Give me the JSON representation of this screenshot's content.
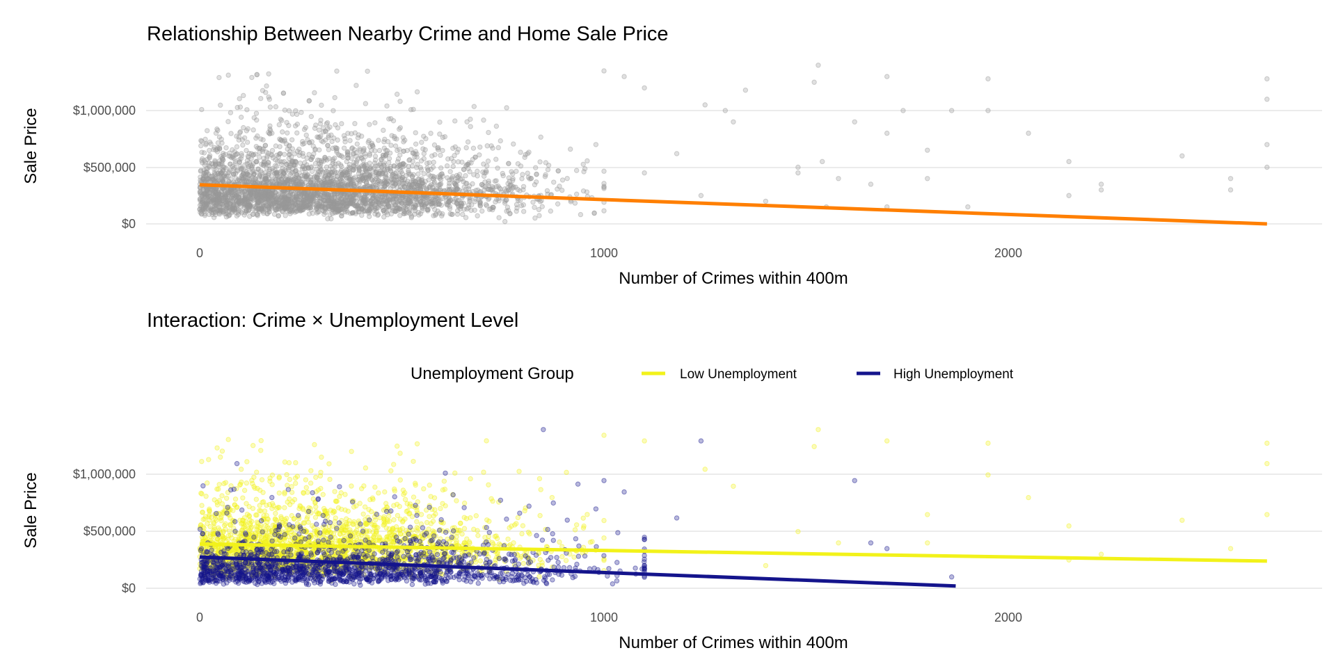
{
  "chart_data": [
    {
      "type": "scatter",
      "title": "Relationship Between Nearby Crime and Home Sale Price",
      "xlabel": "Number of Crimes within 400m",
      "ylabel": "Sale Price",
      "xlim": [
        -120,
        2750
      ],
      "ylim": [
        -60000,
        1420000
      ],
      "x_ticks": [
        {
          "value": 0,
          "label": "0"
        },
        {
          "value": 1000,
          "label": "1000"
        },
        {
          "value": 2000,
          "label": "2000"
        }
      ],
      "y_ticks": [
        {
          "value": 0,
          "label": "$0"
        },
        {
          "value": 500000,
          "label": "$500,000"
        },
        {
          "value": 1000000,
          "label": "$1,000,000"
        }
      ],
      "grid": "horizontal",
      "point_color": "#999999",
      "point_alpha": 0.35,
      "series": [
        {
          "kind": "points",
          "color": "#999999",
          "x": [
            1000,
            1050,
            1100,
            1250,
            1300,
            1320,
            1480,
            1480,
            1520,
            1530,
            1540,
            1580,
            1620,
            1660,
            1700,
            1700,
            1740,
            1800,
            1800,
            1860,
            1950,
            1950,
            2050,
            2150,
            2150,
            2230,
            2230,
            2430,
            2550,
            2550,
            2640,
            2640,
            2640,
            2640,
            1240,
            1400,
            1700,
            1550,
            1100,
            980,
            1180,
            1350,
            1900
          ],
          "y": [
            1350000,
            1300000,
            1200000,
            1050000,
            1000000,
            900000,
            500000,
            450000,
            1250000,
            1400000,
            550000,
            400000,
            900000,
            350000,
            1300000,
            800000,
            1000000,
            650000,
            400000,
            1000000,
            1280000,
            1000000,
            800000,
            550000,
            250000,
            350000,
            300000,
            600000,
            400000,
            300000,
            1280000,
            1100000,
            700000,
            500000,
            250000,
            200000,
            150000,
            150000,
            450000,
            700000,
            620000,
            1180000,
            150000
          ]
        },
        {
          "kind": "fit",
          "color": "#FF7F00",
          "x": [
            0,
            2640
          ],
          "y": [
            345000,
            0
          ]
        }
      ]
    },
    {
      "type": "scatter",
      "title": "Interaction: Crime × Unemployment Level",
      "xlabel": "Number of Crimes within 400m",
      "ylabel": "Sale Price",
      "xlim": [
        -120,
        2750
      ],
      "ylim": [
        -60000,
        1420000
      ],
      "x_ticks": [
        {
          "value": 0,
          "label": "0"
        },
        {
          "value": 1000,
          "label": "1000"
        },
        {
          "value": 2000,
          "label": "2000"
        }
      ],
      "y_ticks": [
        {
          "value": 0,
          "label": "$0"
        },
        {
          "value": 500000,
          "label": "$500,000"
        },
        {
          "value": 1000000,
          "label": "$1,000,000"
        }
      ],
      "grid": "horizontal",
      "legend": {
        "title": "Unemployment Group",
        "position": "top"
      },
      "point_alpha": 0.35,
      "series": [
        {
          "name": "Low Unemployment",
          "color": "#F2F21A",
          "x": [
            1520,
            1530,
            1480,
            1580,
            1700,
            1800,
            1800,
            1950,
            1950,
            2050,
            2150,
            2150,
            2230,
            2430,
            2550,
            2640,
            2640,
            2640,
            1250,
            1320,
            1100,
            1000,
            1400
          ],
          "y": [
            1250000,
            1400000,
            500000,
            400000,
            1300000,
            650000,
            400000,
            1280000,
            1000000,
            800000,
            550000,
            250000,
            300000,
            600000,
            350000,
            1280000,
            1100000,
            650000,
            1050000,
            900000,
            1300000,
            1350000,
            200000
          ],
          "fit": {
            "x": [
              0,
              2640
            ],
            "y": [
              390000,
              240000
            ]
          }
        },
        {
          "name": "High Unemployment",
          "color": "#14148C",
          "x": [
            850,
            1000,
            1050,
            1240,
            1620,
            1660,
            1700,
            1860,
            1100,
            980,
            1180
          ],
          "y": [
            1400000,
            950000,
            850000,
            1300000,
            950000,
            400000,
            350000,
            100000,
            450000,
            700000,
            620000
          ],
          "fit": {
            "x": [
              0,
              1870
            ],
            "y": [
              275000,
              20000
            ]
          }
        }
      ]
    }
  ]
}
